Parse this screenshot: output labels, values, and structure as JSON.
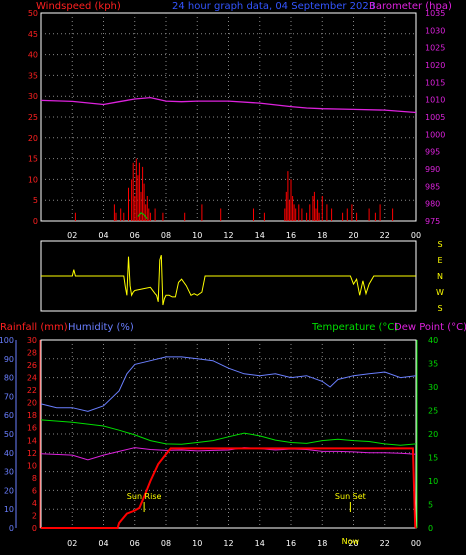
{
  "header": {
    "windspeed_label": "Windspeed (kph)",
    "graph_title": "24 hour graph data, 04 September 2023",
    "barometer_label": "Barometer (hpa)"
  },
  "middle_header": {
    "rainfall_label": "Rainfall (mm)",
    "humidity_label": "Humidity (%)",
    "temperature_label": "Temperature (°C)",
    "dewpoint_label": "Dew Point (°C)"
  },
  "annotations": {
    "sun_rise": "Sun Rise",
    "sun_set": "Sun Set",
    "now_marker": "Now"
  },
  "colors": {
    "wind": "#ff0000",
    "gust": "#00cc00",
    "barometer": "#dd22dd",
    "direction": "#ffff00",
    "rain": "#ff0000",
    "humidity": "#6a7fff",
    "temperature": "#00dd00",
    "dewpoint": "#dd22dd",
    "grid": "#888888"
  },
  "chart_data": [
    {
      "type": "line",
      "name": "wind-barometer",
      "x_tick_labels": [
        "02",
        "04",
        "06",
        "08",
        "10",
        "12",
        "14",
        "16",
        "18",
        "20",
        "22",
        "00"
      ],
      "y_left": {
        "label": "Windspeed (kph)",
        "range": [
          0,
          50
        ],
        "ticks": [
          "0",
          "5",
          "10",
          "15",
          "20",
          "25",
          "30",
          "35",
          "40",
          "45",
          "50"
        ]
      },
      "y_right": {
        "label": "Barometer (hpa)",
        "range": [
          975,
          1035
        ],
        "ticks": [
          "975",
          "980",
          "985",
          "990",
          "995",
          "1000",
          "1005",
          "1010",
          "1015",
          "1020",
          "1025",
          "1030",
          "1035"
        ]
      },
      "grid": true,
      "barometer": {
        "x": [
          0,
          2,
          4,
          5,
          6,
          7,
          8,
          9,
          10,
          12,
          14,
          16,
          17,
          18,
          20,
          22,
          24
        ],
        "y": [
          1009.8,
          1009.5,
          1008.6,
          1009.4,
          1010.2,
          1010.6,
          1009.6,
          1009.4,
          1009.6,
          1009.6,
          1009.0,
          1008.0,
          1007.6,
          1007.4,
          1007.2,
          1007.0,
          1006.3
        ]
      },
      "wind_speed": {
        "x": [
          2.2,
          4.7,
          4.8,
          5.1,
          5.3,
          5.6,
          5.8,
          5.9,
          6.0,
          6.1,
          6.2,
          6.3,
          6.4,
          6.5,
          6.6,
          6.7,
          6.8,
          6.9,
          7.0,
          7.3,
          7.8,
          9.2,
          10.3,
          11.5,
          13.6,
          14.3,
          15.6,
          15.7,
          15.8,
          15.9,
          16.0,
          16.1,
          16.2,
          16.3,
          16.5,
          16.7,
          17.0,
          17.2,
          17.4,
          17.5,
          17.6,
          17.7,
          17.8,
          18.0,
          18.3,
          18.6,
          19.3,
          19.6,
          19.9,
          20.2,
          21.0,
          21.4,
          21.7,
          22.5
        ],
        "y": [
          2,
          4,
          2,
          3,
          2,
          8,
          10,
          14,
          6,
          15,
          11,
          14,
          7,
          13,
          9,
          4,
          6,
          3,
          2,
          3,
          2,
          2,
          4,
          3,
          3,
          2,
          3,
          7,
          12,
          5,
          10,
          6,
          4,
          3,
          4,
          3,
          2,
          4,
          6,
          7,
          3,
          5,
          2,
          6,
          4,
          3,
          2,
          3,
          4,
          2,
          3,
          2,
          4,
          3
        ]
      },
      "wind_gust": {
        "x": [
          6.2,
          6.4,
          6.6,
          6.8
        ],
        "y": [
          1,
          2,
          1.5,
          0.5
        ]
      }
    },
    {
      "type": "line",
      "name": "wind-direction",
      "y_labels": [
        "S",
        "E",
        "N",
        "W",
        "S"
      ],
      "x": [
        0,
        2.0,
        2.1,
        2.2,
        2.3,
        5.3,
        5.4,
        5.5,
        5.6,
        5.7,
        5.8,
        5.9,
        6.0,
        6.5,
        7.0,
        7.3,
        7.4,
        7.5,
        7.6,
        7.7,
        7.8,
        7.9,
        8.0,
        8.2,
        8.4,
        8.6,
        8.8,
        9.0,
        9.3,
        9.6,
        9.8,
        10.0,
        10.3,
        10.5,
        19.8,
        20.0,
        20.2,
        20.4,
        20.6,
        20.8,
        21.0,
        21.3,
        21.6,
        24
      ],
      "y": [
        180,
        180,
        140,
        180,
        180,
        180,
        250,
        300,
        60,
        240,
        300,
        280,
        270,
        260,
        250,
        290,
        300,
        340,
        80,
        50,
        360,
        320,
        300,
        300,
        310,
        310,
        220,
        200,
        240,
        300,
        290,
        300,
        280,
        180,
        180,
        230,
        200,
        300,
        210,
        290,
        230,
        180,
        180,
        180
      ]
    },
    {
      "type": "line",
      "name": "rain-humidity-temperature",
      "x_tick_labels": [
        "02",
        "04",
        "06",
        "08",
        "10",
        "12",
        "14",
        "16",
        "18",
        "20",
        "22",
        "00"
      ],
      "y_humidity": {
        "label": "Humidity (%)",
        "range": [
          0,
          100
        ],
        "ticks": [
          "0",
          "10",
          "20",
          "30",
          "40",
          "50",
          "60",
          "70",
          "80",
          "90",
          "100"
        ]
      },
      "y_rain": {
        "label": "Rainfall (mm)",
        "range": [
          0,
          30
        ],
        "ticks": [
          "0",
          "2",
          "4",
          "6",
          "8",
          "10",
          "12",
          "14",
          "16",
          "18",
          "20",
          "22",
          "24",
          "26",
          "28",
          "30"
        ]
      },
      "y_temp": {
        "label": "Temperature (°C)",
        "range": [
          0,
          40
        ],
        "ticks": [
          "0",
          "5",
          "10",
          "15",
          "20",
          "25",
          "30",
          "35",
          "40"
        ]
      },
      "grid": true,
      "humidity": {
        "x": [
          0,
          1,
          2,
          3,
          4,
          5,
          5.5,
          6,
          7,
          8,
          9,
          10,
          11,
          12,
          13,
          14,
          15,
          16,
          17,
          18,
          18.5,
          19,
          20,
          21,
          22,
          23,
          24
        ],
        "y": [
          66,
          64,
          64,
          62,
          65,
          73,
          82,
          87,
          89,
          91,
          91,
          90,
          89,
          85,
          82,
          81,
          82,
          80,
          81,
          78,
          75,
          79,
          81,
          82,
          83,
          80,
          81
        ]
      },
      "temperature": {
        "x": [
          0,
          2,
          4,
          5,
          6,
          7,
          8,
          9,
          10,
          11,
          12,
          13,
          14,
          15,
          16,
          17,
          18,
          19,
          20,
          21,
          22,
          23,
          24
        ],
        "y": [
          23,
          22.5,
          21.7,
          20.8,
          19.8,
          18.6,
          17.9,
          17.8,
          18.2,
          18.6,
          19.4,
          20.2,
          19.6,
          18.7,
          18.2,
          18.0,
          18.6,
          18.9,
          18.6,
          18.4,
          17.9,
          17.6,
          17.9
        ]
      },
      "dewpoint": {
        "x": [
          0,
          2,
          3,
          4,
          5,
          6,
          7,
          8,
          9,
          10,
          11,
          12,
          13,
          14,
          15,
          16,
          17,
          18,
          19,
          20,
          21,
          22,
          23,
          24
        ],
        "y": [
          15.8,
          15.5,
          14.5,
          15.5,
          16.3,
          17.1,
          16.7,
          16.5,
          16.6,
          16.4,
          16.5,
          16.6,
          17.1,
          16.9,
          16.6,
          16.8,
          16.7,
          16.3,
          16.3,
          16.2,
          16.0,
          16.0,
          15.9,
          15.7
        ]
      },
      "rainfall": {
        "x": [
          0,
          4.9,
          5.0,
          5.5,
          6.0,
          6.3,
          6.6,
          7.0,
          7.5,
          8.0,
          8.3,
          8.6,
          12,
          16,
          20,
          23.8,
          23.95,
          24
        ],
        "y": [
          0,
          0,
          0.8,
          2.3,
          2.8,
          3.2,
          5.0,
          7.5,
          10.2,
          11.8,
          12.7,
          12.7,
          12.7,
          12.7,
          12.7,
          12.7,
          0.2,
          0
        ]
      },
      "sun_rise_hour": 6.6,
      "sun_set_hour": 19.8,
      "now_hour": 23.8
    }
  ]
}
